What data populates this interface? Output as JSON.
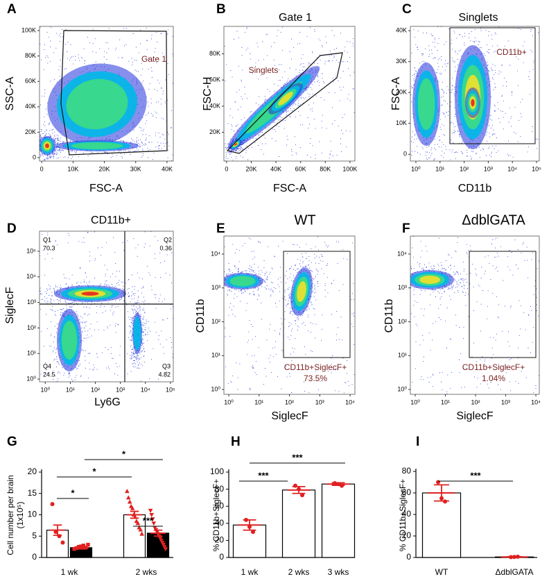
{
  "chart_data": [
    {
      "type": "flow",
      "panel": "A",
      "xlabel": "FSC-A",
      "ylabel": "SSC-A",
      "xlim": [
        -700,
        42000
      ],
      "ylim": [
        -2700,
        103300
      ],
      "xticks": [
        0,
        {
          "value": 10000,
          "label": "10K"
        },
        {
          "value": 20000,
          "label": "20K"
        },
        {
          "value": 30000,
          "label": "30K"
        },
        {
          "value": 40000,
          "label": "40K"
        }
      ],
      "yticks": [
        0,
        {
          "value": 20000,
          "label": "20K"
        },
        {
          "value": 40000,
          "label": "40K"
        },
        {
          "value": 60000,
          "label": "60K"
        },
        {
          "value": 80000,
          "label": "80K"
        },
        {
          "value": 100000,
          "label": "100K"
        }
      ],
      "gates": [
        {
          "name": "Gate 1"
        }
      ]
    },
    {
      "type": "flow",
      "panel": "B",
      "title": "Gate 1",
      "title_color": "#7a1f1f",
      "xlabel": "FSC-A",
      "ylabel": "FSC-H",
      "xlim": [
        -2200,
        104000
      ],
      "ylim": [
        -2000,
        101000
      ],
      "xticks": [
        0,
        {
          "value": 20000,
          "label": "20K"
        },
        {
          "value": 40000,
          "label": "40K"
        },
        {
          "value": 60000,
          "label": "60K"
        },
        {
          "value": 80000,
          "label": "80K"
        },
        {
          "value": 100000,
          "label": "100K"
        }
      ],
      "yticks": [
        {
          "value": 20000,
          "label": "20K"
        },
        {
          "value": 40000,
          "label": "40K"
        },
        {
          "value": 60000,
          "label": "60K"
        },
        {
          "value": 80000,
          "label": "80K"
        }
      ],
      "gates": [
        {
          "name": "Singlets"
        }
      ]
    },
    {
      "type": "flow",
      "panel": "C",
      "title": "Singlets",
      "title_color": "#7a1f1f",
      "xlabel": "CD11b",
      "ylabel": "FSC-A",
      "xscale": "log",
      "xlim": [
        0.59,
        130000
      ],
      "ylim": [
        -2200,
        41400
      ],
      "xticks": [
        {
          "value": 1,
          "label": "10⁰"
        },
        {
          "value": 10,
          "label": "10¹"
        },
        {
          "value": 100,
          "label": "10²"
        },
        {
          "value": 1000,
          "label": "10³"
        },
        {
          "value": 10000,
          "label": "10⁴"
        },
        {
          "value": 100000,
          "label": "10⁵"
        }
      ],
      "yticks": [
        0,
        {
          "value": 10000,
          "label": "10K"
        },
        {
          "value": 20000,
          "label": "20K"
        },
        {
          "value": 30000,
          "label": "30K"
        },
        {
          "value": 40000,
          "label": "40K"
        }
      ],
      "gates": [
        {
          "name": "CD11b+"
        }
      ]
    },
    {
      "type": "flow",
      "panel": "D",
      "title": "CD11b+",
      "title_color": "#7a1f1f",
      "xlabel": "Ly6G",
      "ylabel": "SiglecF",
      "xscale": "log",
      "yscale": "log",
      "xlim": [
        0.59,
        130000
      ],
      "ylim": [
        0.78,
        610000
      ],
      "xticks": [
        {
          "value": 1,
          "label": "10⁰"
        },
        {
          "value": 10,
          "label": "10¹"
        },
        {
          "value": 100,
          "label": "10²"
        },
        {
          "value": 1000,
          "label": "10³"
        },
        {
          "value": 10000,
          "label": "10⁴"
        },
        {
          "value": 100000,
          "label": "10⁵"
        }
      ],
      "yticks": [
        {
          "value": 1,
          "label": "10⁰"
        },
        {
          "value": 10,
          "label": "10¹"
        },
        {
          "value": 100,
          "label": "10²"
        },
        {
          "value": 1000,
          "label": "10³"
        },
        {
          "value": 10000,
          "label": "10⁴"
        },
        {
          "value": 100000,
          "label": "10⁵"
        }
      ],
      "quadrants": [
        {
          "name": "Q1",
          "value": 70.3
        },
        {
          "name": "Q2",
          "value": 0.36
        },
        {
          "name": "Q4",
          "value": 24.5
        },
        {
          "name": "Q3",
          "value": 4.82
        }
      ]
    },
    {
      "type": "flow",
      "panel": "E",
      "title": "WT",
      "title_color": "#000000",
      "xlabel": "SiglecF",
      "ylabel": "CD11b",
      "xscale": "log",
      "yscale": "log",
      "xlim": [
        0.69,
        14400
      ],
      "ylim": [
        0.72,
        34000
      ],
      "xticks": [
        {
          "value": 1,
          "label": "10⁰"
        },
        {
          "value": 10,
          "label": "10¹"
        },
        {
          "value": 100,
          "label": "10²"
        },
        {
          "value": 1000,
          "label": "10³"
        },
        {
          "value": 10000,
          "label": "10⁴"
        }
      ],
      "yticks": [
        {
          "value": 1,
          "label": "10⁰"
        },
        {
          "value": 10,
          "label": "10¹"
        },
        {
          "value": 100,
          "label": "10²"
        },
        {
          "value": 1000,
          "label": "10³"
        },
        {
          "value": 10000,
          "label": "10⁴"
        }
      ],
      "gates": [
        {
          "name": "CD11b+SiglecF+",
          "value": 73.5,
          "value_label": "73.5%"
        }
      ]
    },
    {
      "type": "flow",
      "panel": "F",
      "title": "ΔdblGATA",
      "title_color": "#000000",
      "xlabel": "SiglecF",
      "ylabel": "CD11b",
      "xscale": "log",
      "yscale": "log",
      "xlim": [
        0.69,
        13000
      ],
      "ylim": [
        0.72,
        34000
      ],
      "xticks": [
        {
          "value": 1,
          "label": "10⁰"
        },
        {
          "value": 10,
          "label": "10¹"
        },
        {
          "value": 100,
          "label": "10²"
        },
        {
          "value": 1000,
          "label": "10³"
        },
        {
          "value": 10000,
          "label": "10⁴"
        }
      ],
      "yticks": [
        {
          "value": 1,
          "label": "10⁰"
        },
        {
          "value": 10,
          "label": "10¹"
        },
        {
          "value": 100,
          "label": "10²"
        },
        {
          "value": 1000,
          "label": "10³"
        },
        {
          "value": 10000,
          "label": "10⁴"
        }
      ],
      "gates": [
        {
          "name": "CD11b+SiglecF+",
          "value": 1.04,
          "value_label": "1.04%"
        }
      ]
    },
    {
      "type": "bar",
      "panel": "G",
      "ylabel": [
        "Cell number per brain",
        "(1x10⁵)"
      ],
      "categories": [
        "1 wk",
        "2 wks"
      ],
      "ylim": [
        0,
        20
      ],
      "yticks": [
        0,
        5,
        10,
        15,
        20
      ],
      "point_color": "#e02020",
      "series": [
        {
          "color": "#ffffff",
          "values": [
            6.4,
            10
          ],
          "errors": [
            1.2,
            0.8
          ],
          "markers": [
            "circle",
            "triangle"
          ],
          "points": [
            [
              12.5,
              6,
              5,
              3.5
            ],
            [
              15.5,
              14,
              13,
              12,
              11.5,
              10,
              9.5,
              8.5,
              8,
              7,
              6.5,
              5.5
            ]
          ]
        },
        {
          "color": "#000000",
          "values": [
            2.3,
            5.7
          ],
          "errors": [
            0.3,
            0.7
          ],
          "markers": [
            "square",
            "triangle-down"
          ],
          "points": [
            [
              2,
              2.2,
              2.5,
              2.6,
              2.8,
              2.3,
              3
            ],
            [
              11,
              10,
              9,
              8,
              7,
              6.5,
              6,
              5.5,
              5,
              4.5,
              4,
              3.5,
              3,
              2.5,
              2
            ]
          ]
        }
      ],
      "significance": [
        "*",
        "*",
        "*",
        "***"
      ]
    },
    {
      "type": "bar",
      "panel": "H",
      "ylabel": [
        "% CD11b+SiglecF+"
      ],
      "categories": [
        "1 wk",
        "2 wks",
        "3 wks"
      ],
      "ylim": [
        0,
        100
      ],
      "yticks": [
        0,
        20,
        40,
        60,
        80,
        100
      ],
      "point_color": "#e02020",
      "series": [
        {
          "color": "#ffffff",
          "values": [
            38,
            79,
            86
          ],
          "errors": [
            6,
            4,
            1.5
          ],
          "points": [
            [
              44,
              36,
              30
            ],
            [
              84,
              80,
              73
            ],
            [
              87,
              86,
              84
            ]
          ]
        }
      ],
      "significance": [
        "***",
        "***"
      ]
    },
    {
      "type": "bar",
      "panel": "I",
      "ylabel": [
        "% CD11b+SiglecF+"
      ],
      "categories": [
        "WT",
        "ΔdblGATA"
      ],
      "ylim": [
        0,
        80
      ],
      "yticks": [
        0,
        20,
        40,
        60,
        80
      ],
      "point_color": "#e02020",
      "series": [
        {
          "color": "#ffffff",
          "values": [
            60,
            0.5
          ],
          "errors": [
            7.5,
            0.2
          ],
          "points": [
            [
              70,
              55,
              52
            ],
            [
              0.3,
              0.5,
              0.7
            ]
          ]
        }
      ],
      "significance": [
        "***"
      ]
    }
  ]
}
